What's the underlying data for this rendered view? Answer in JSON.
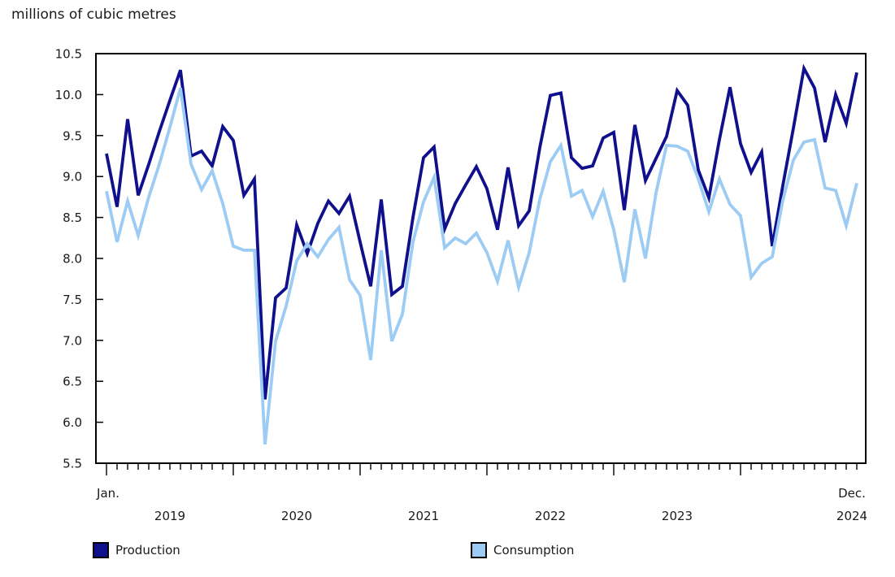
{
  "title": "millions of cubic metres",
  "chart_data": {
    "type": "line",
    "title": "millions of cubic metres",
    "x_unit": "monthly",
    "x_range": "Jan. 2019 - Dec. 2024",
    "x_first_label": "Jan.",
    "x_last_label": "Dec.",
    "year_labels": [
      "2019",
      "2020",
      "2021",
      "2022",
      "2023",
      "2024"
    ],
    "ylim": [
      5.5,
      10.5
    ],
    "y_tick_step": 0.5,
    "y_tick_labels": [
      "5.5",
      "6.0",
      "6.5",
      "7.0",
      "7.5",
      "8.0",
      "8.5",
      "9.0",
      "9.5",
      "10.0",
      "10.5"
    ],
    "grid": false,
    "legend_position": "bottom",
    "series": [
      {
        "name": "Production",
        "color": "#10108C",
        "values": [
          9.28,
          8.63,
          9.7,
          8.77,
          9.15,
          9.55,
          9.93,
          10.3,
          9.25,
          9.31,
          9.13,
          9.61,
          9.44,
          8.77,
          8.97,
          6.28,
          7.52,
          7.64,
          8.41,
          8.06,
          8.43,
          8.7,
          8.55,
          8.76,
          8.2,
          7.66,
          8.72,
          7.56,
          7.66,
          8.5,
          9.23,
          9.36,
          8.36,
          8.67,
          8.9,
          9.12,
          8.85,
          8.35,
          9.11,
          8.4,
          8.58,
          9.35,
          9.99,
          10.02,
          9.23,
          9.1,
          9.13,
          9.47,
          9.54,
          8.59,
          9.63,
          8.95,
          9.22,
          9.49,
          10.05,
          9.87,
          9.08,
          8.74,
          9.45,
          10.09,
          9.4,
          9.05,
          9.3,
          8.15,
          8.89,
          9.59,
          10.32,
          10.08,
          9.42,
          10.0,
          9.65,
          10.27
        ]
      },
      {
        "name": "Consumption",
        "color": "#9CCCF4",
        "values": [
          8.82,
          8.2,
          8.7,
          8.28,
          8.75,
          9.15,
          9.6,
          10.08,
          9.15,
          8.84,
          9.07,
          8.67,
          8.15,
          8.1,
          8.1,
          5.73,
          6.99,
          7.42,
          7.97,
          8.18,
          8.02,
          8.23,
          8.38,
          7.74,
          7.55,
          6.76,
          8.1,
          6.99,
          7.32,
          8.2,
          8.69,
          8.99,
          8.13,
          8.25,
          8.18,
          8.31,
          8.07,
          7.72,
          8.22,
          7.65,
          8.07,
          8.72,
          9.18,
          9.38,
          8.76,
          8.83,
          8.51,
          8.82,
          8.35,
          7.71,
          8.6,
          8.0,
          8.8,
          9.38,
          9.37,
          9.31,
          8.97,
          8.57,
          8.97,
          8.66,
          8.52,
          7.77,
          7.94,
          8.02,
          8.71,
          9.2,
          9.42,
          9.45,
          8.86,
          8.83,
          8.4,
          8.92
        ]
      }
    ]
  },
  "legend": {
    "items": [
      {
        "label": "Production",
        "color": "#10108C"
      },
      {
        "label": "Consumption",
        "color": "#9CCCF4"
      }
    ]
  }
}
